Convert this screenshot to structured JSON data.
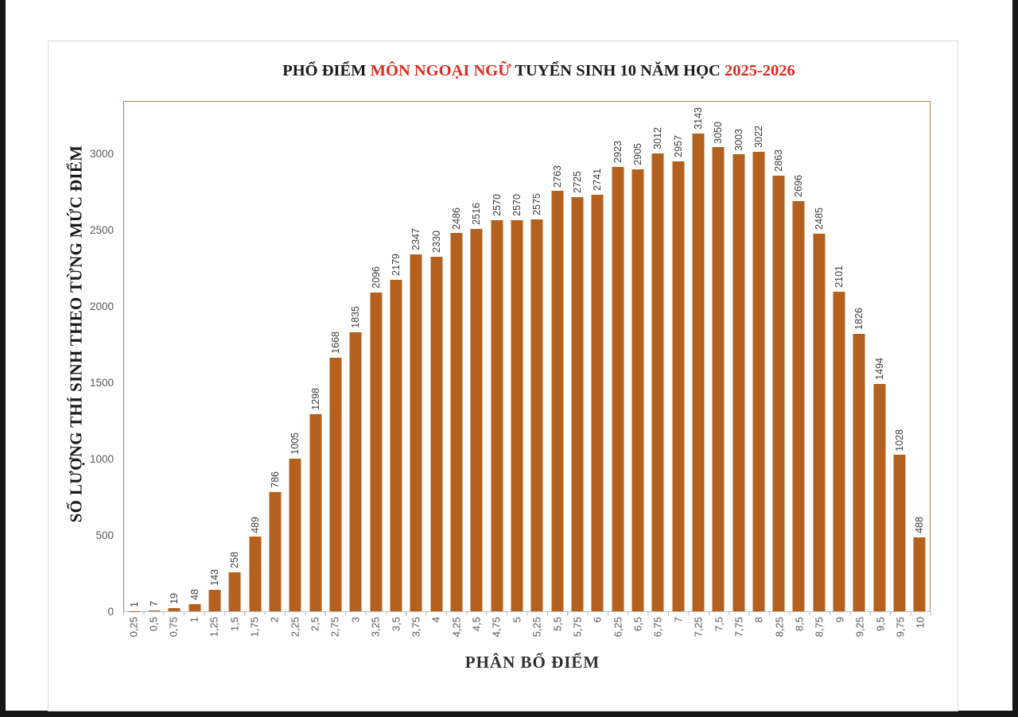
{
  "chart_data": {
    "type": "bar",
    "title_parts": [
      {
        "text": "PHỔ ĐIỂM ",
        "color": "#1a1a1a"
      },
      {
        "text": "MÔN NGOẠI NGỮ",
        "color": "#e02a1e"
      },
      {
        "text": " TUYỂN SINH 10 NĂM HỌC ",
        "color": "#1a1a1a"
      },
      {
        "text": "2025-2026",
        "color": "#e02a1e"
      }
    ],
    "categories": [
      "0,25",
      "0,5",
      "0,75",
      "1",
      "1,25",
      "1,5",
      "1,75",
      "2",
      "2,25",
      "2,5",
      "2,75",
      "3",
      "3,25",
      "3,5",
      "3,75",
      "4",
      "4,25",
      "4,5",
      "4,75",
      "5",
      "5,25",
      "5,5",
      "5,75",
      "6",
      "6,25",
      "6,5",
      "6,75",
      "7",
      "7,25",
      "7,5",
      "7,75",
      "8",
      "8,25",
      "8,5",
      "8,75",
      "9",
      "9,25",
      "9,5",
      "9,75",
      "10"
    ],
    "values": [
      1,
      7,
      19,
      48,
      143,
      258,
      489,
      786,
      1005,
      1298,
      1668,
      1835,
      2096,
      2179,
      2347,
      2330,
      2486,
      2516,
      2570,
      2570,
      2575,
      2763,
      2725,
      2741,
      2923,
      2905,
      3012,
      2957,
      3143,
      3050,
      3003,
      3022,
      2863,
      2696,
      2485,
      2101,
      1826,
      1494,
      1028,
      488
    ],
    "xlabel": "PHÂN BỐ ĐIỂM",
    "ylabel": "SỐ LƯỢNG THÍ SINH THEO TỪNG MỨC ĐIỂM",
    "yticks": [
      0,
      500,
      1000,
      1500,
      2000,
      2500,
      3000
    ],
    "ylim": [
      0,
      3350
    ],
    "bar_color": "#b4611f",
    "plot_border_color": "#c08049",
    "grid": false,
    "legend": false
  }
}
